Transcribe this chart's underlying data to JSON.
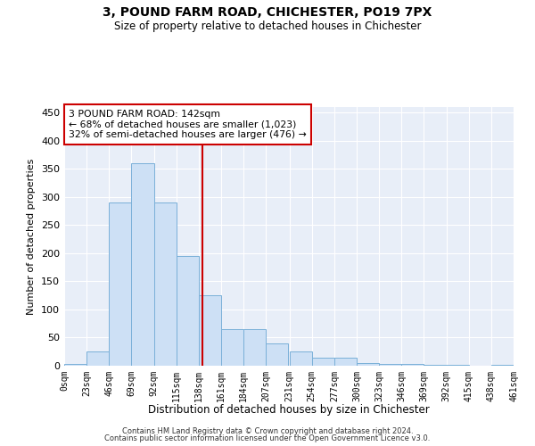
{
  "title": "3, POUND FARM ROAD, CHICHESTER, PO19 7PX",
  "subtitle": "Size of property relative to detached houses in Chichester",
  "xlabel": "Distribution of detached houses by size in Chichester",
  "ylabel": "Number of detached properties",
  "bar_color": "#cde0f5",
  "bar_edge_color": "#7ab0d8",
  "background_color": "#e8eef8",
  "grid_color": "#ffffff",
  "vline_value": 142,
  "vline_color": "#cc0000",
  "bin_edges": [
    0,
    23,
    46,
    69,
    92,
    115,
    138,
    161,
    184,
    207,
    231,
    254,
    277,
    300,
    323,
    346,
    369,
    392,
    415,
    438,
    461
  ],
  "bin_labels": [
    "0sqm",
    "23sqm",
    "46sqm",
    "69sqm",
    "92sqm",
    "115sqm",
    "138sqm",
    "161sqm",
    "184sqm",
    "207sqm",
    "231sqm",
    "254sqm",
    "277sqm",
    "300sqm",
    "323sqm",
    "346sqm",
    "369sqm",
    "392sqm",
    "415sqm",
    "438sqm",
    "461sqm"
  ],
  "bar_heights": [
    3,
    25,
    290,
    360,
    290,
    195,
    125,
    65,
    65,
    40,
    25,
    15,
    15,
    5,
    3,
    3,
    2,
    1,
    0,
    2
  ],
  "ylim": [
    0,
    460
  ],
  "yticks": [
    0,
    50,
    100,
    150,
    200,
    250,
    300,
    350,
    400,
    450
  ],
  "annotation_text": "3 POUND FARM ROAD: 142sqm\n← 68% of detached houses are smaller (1,023)\n32% of semi-detached houses are larger (476) →",
  "annotation_box_color": "#ffffff",
  "annotation_box_edge": "#cc0000",
  "footer1": "Contains HM Land Registry data © Crown copyright and database right 2024.",
  "footer2": "Contains public sector information licensed under the Open Government Licence v3.0."
}
